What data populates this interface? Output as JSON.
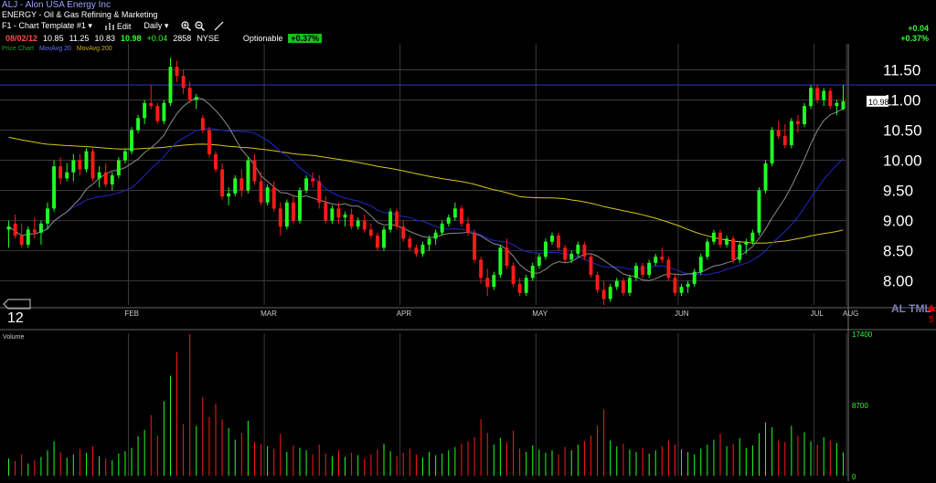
{
  "header": {
    "title": "ALJ - Alon USA Energy Inc",
    "sector": "ENERGY - Oil & Gas Refining & Marketing",
    "toolbar": {
      "template_label": "F1 - Chart Template #1 ▾",
      "edit_label": "Edit",
      "period_label": "Daily ▾"
    },
    "quote": {
      "date": "08/02/12",
      "open": "10.85",
      "high": "11.25",
      "low": "10.83",
      "close": "10.98",
      "change": "+0.04",
      "volume": "2858",
      "exchange": "NYSE",
      "optionable_label": "Optionable",
      "change_pct": "+0.37%"
    },
    "right_change": "+0.04",
    "right_change_pct": "+0.37%",
    "legend": {
      "price": "Price Chart",
      "ma_20": "MovAvg 20",
      "ma_200": "MovAvg 200"
    }
  },
  "corner_labels": {
    "left": "12",
    "right": "AL TML",
    "right_red": "5"
  },
  "colors": {
    "background": "#000000",
    "up": "#22ff22",
    "down": "#ff1a1a",
    "ma_short": "#8c8c8c",
    "ma_mid": "#1e28c8",
    "ma_long": "#d6c71a",
    "grid": "#3a3a3a",
    "hline": "#2a36c8"
  },
  "chart_data": [
    {
      "type": "candlestick",
      "title": "",
      "x": {
        "tick_labels": [
          "FEB",
          "MAR",
          "APR",
          "MAY",
          "JUN",
          "JUL",
          "AUG"
        ]
      },
      "y": {
        "ylim": [
          7.6,
          11.75
        ],
        "tick_labels": [
          "11.50",
          "11.00",
          "10.50",
          "10.00",
          "9.50",
          "9.00",
          "8.50",
          "8.00"
        ],
        "tick_values": [
          11.5,
          11.0,
          10.5,
          10.0,
          9.5,
          9.0,
          8.5,
          8.0
        ]
      },
      "last_price_label": "10.98",
      "last_price": 10.98,
      "reference_line": 11.25,
      "grid": true,
      "series": [
        {
          "type": "ohlc",
          "values": [
            [
              8.85,
              9.0,
              8.55,
              8.9
            ],
            [
              8.95,
              9.1,
              8.7,
              8.75
            ],
            [
              8.75,
              8.95,
              8.55,
              8.6
            ],
            [
              8.6,
              8.9,
              8.55,
              8.85
            ],
            [
              8.85,
              9.05,
              8.7,
              8.8
            ],
            [
              8.8,
              9.0,
              8.6,
              8.95
            ],
            [
              8.95,
              9.3,
              8.85,
              9.2
            ],
            [
              9.2,
              10.0,
              9.15,
              9.9
            ],
            [
              9.9,
              10.05,
              9.6,
              9.7
            ],
            [
              9.7,
              9.95,
              9.65,
              9.8
            ],
            [
              9.8,
              10.1,
              9.65,
              10.0
            ],
            [
              10.0,
              10.1,
              9.75,
              9.85
            ],
            [
              9.85,
              10.2,
              9.8,
              10.15
            ],
            [
              10.15,
              10.2,
              9.65,
              9.7
            ],
            [
              9.7,
              9.9,
              9.55,
              9.8
            ],
            [
              9.8,
              9.95,
              9.55,
              9.6
            ],
            [
              9.6,
              9.8,
              9.5,
              9.75
            ],
            [
              9.75,
              10.05,
              9.7,
              10.0
            ],
            [
              10.0,
              10.2,
              9.95,
              10.15
            ],
            [
              10.15,
              10.55,
              10.1,
              10.5
            ],
            [
              10.5,
              10.75,
              10.45,
              10.7
            ],
            [
              10.7,
              11.0,
              10.6,
              10.95
            ],
            [
              10.95,
              11.25,
              10.85,
              10.9
            ],
            [
              10.9,
              10.95,
              10.6,
              10.65
            ],
            [
              10.65,
              11.0,
              10.6,
              10.95
            ],
            [
              10.95,
              11.7,
              10.9,
              11.55
            ],
            [
              11.55,
              11.65,
              11.3,
              11.4
            ],
            [
              11.4,
              11.5,
              11.1,
              11.2
            ],
            [
              11.2,
              11.3,
              10.95,
              11.0
            ],
            [
              11.0,
              11.1,
              10.85,
              11.05
            ],
            [
              10.7,
              10.75,
              10.45,
              10.5
            ],
            [
              10.5,
              10.55,
              10.05,
              10.1
            ],
            [
              10.1,
              10.15,
              9.8,
              9.85
            ],
            [
              9.85,
              9.95,
              9.35,
              9.4
            ],
            [
              9.4,
              9.55,
              9.25,
              9.45
            ],
            [
              9.45,
              9.75,
              9.4,
              9.7
            ],
            [
              9.7,
              9.85,
              9.4,
              9.5
            ],
            [
              9.5,
              10.05,
              9.45,
              10.0
            ],
            [
              10.0,
              10.1,
              9.6,
              9.65
            ],
            [
              9.65,
              9.8,
              9.25,
              9.3
            ],
            [
              9.3,
              9.6,
              9.25,
              9.55
            ],
            [
              9.55,
              9.65,
              9.15,
              9.2
            ],
            [
              9.2,
              9.3,
              8.75,
              8.9
            ],
            [
              8.9,
              9.35,
              8.85,
              9.3
            ],
            [
              9.3,
              9.4,
              8.95,
              9.0
            ],
            [
              9.0,
              9.55,
              8.95,
              9.5
            ],
            [
              9.5,
              9.75,
              9.45,
              9.7
            ],
            [
              9.7,
              9.8,
              9.55,
              9.65
            ],
            [
              9.65,
              9.75,
              9.2,
              9.3
            ],
            [
              9.3,
              9.4,
              8.95,
              9.0
            ],
            [
              9.0,
              9.25,
              8.95,
              9.2
            ],
            [
              9.2,
              9.3,
              8.95,
              9.05
            ],
            [
              9.05,
              9.15,
              8.9,
              9.1
            ],
            [
              9.1,
              9.2,
              8.85,
              8.9
            ],
            [
              8.9,
              9.05,
              8.85,
              9.0
            ],
            [
              9.0,
              9.1,
              8.8,
              8.85
            ],
            [
              8.85,
              8.95,
              8.7,
              8.75
            ],
            [
              8.75,
              8.8,
              8.5,
              8.55
            ],
            [
              8.55,
              8.9,
              8.5,
              8.85
            ],
            [
              8.85,
              9.2,
              8.8,
              9.15
            ],
            [
              9.15,
              9.2,
              8.85,
              8.9
            ],
            [
              8.9,
              9.0,
              8.65,
              8.7
            ],
            [
              8.7,
              8.75,
              8.5,
              8.55
            ],
            [
              8.55,
              8.6,
              8.4,
              8.45
            ],
            [
              8.45,
              8.65,
              8.4,
              8.6
            ],
            [
              8.6,
              8.75,
              8.5,
              8.7
            ],
            [
              8.7,
              8.85,
              8.6,
              8.8
            ],
            [
              8.8,
              9.0,
              8.75,
              8.95
            ],
            [
              8.95,
              9.1,
              8.9,
              9.05
            ],
            [
              9.05,
              9.3,
              9.0,
              9.2
            ],
            [
              9.2,
              9.25,
              8.9,
              8.95
            ],
            [
              8.95,
              9.05,
              8.75,
              8.8
            ],
            [
              8.8,
              8.85,
              8.3,
              8.35
            ],
            [
              8.35,
              8.4,
              7.95,
              8.05
            ],
            [
              8.05,
              8.2,
              7.75,
              7.9
            ],
            [
              7.9,
              8.15,
              7.85,
              8.1
            ],
            [
              8.1,
              8.6,
              8.05,
              8.55
            ],
            [
              8.55,
              8.7,
              8.2,
              8.25
            ],
            [
              8.25,
              8.3,
              7.9,
              7.95
            ],
            [
              7.95,
              8.05,
              7.75,
              7.8
            ],
            [
              7.8,
              8.1,
              7.75,
              8.05
            ],
            [
              8.05,
              8.3,
              8.0,
              8.25
            ],
            [
              8.25,
              8.45,
              8.2,
              8.4
            ],
            [
              8.4,
              8.7,
              8.35,
              8.65
            ],
            [
              8.65,
              8.8,
              8.6,
              8.75
            ],
            [
              8.75,
              8.8,
              8.5,
              8.55
            ],
            [
              8.55,
              8.6,
              8.3,
              8.35
            ],
            [
              8.35,
              8.5,
              8.3,
              8.45
            ],
            [
              8.45,
              8.65,
              8.4,
              8.6
            ],
            [
              8.6,
              8.65,
              8.35,
              8.4
            ],
            [
              8.4,
              8.45,
              8.05,
              8.1
            ],
            [
              8.1,
              8.15,
              7.8,
              7.85
            ],
            [
              7.85,
              8.0,
              7.6,
              7.7
            ],
            [
              7.7,
              7.95,
              7.65,
              7.9
            ],
            [
              7.9,
              8.05,
              7.85,
              8.0
            ],
            [
              8.0,
              8.05,
              7.75,
              7.8
            ],
            [
              7.8,
              8.1,
              7.75,
              8.05
            ],
            [
              8.05,
              8.3,
              8.0,
              8.25
            ],
            [
              8.25,
              8.3,
              8.05,
              8.1
            ],
            [
              8.1,
              8.35,
              8.05,
              8.3
            ],
            [
              8.3,
              8.45,
              8.25,
              8.4
            ],
            [
              8.4,
              8.55,
              8.3,
              8.35
            ],
            [
              8.35,
              8.4,
              8.0,
              8.05
            ],
            [
              8.05,
              8.1,
              7.75,
              7.8
            ],
            [
              7.8,
              7.95,
              7.75,
              7.9
            ],
            [
              7.9,
              8.0,
              7.8,
              7.95
            ],
            [
              7.95,
              8.2,
              7.9,
              8.15
            ],
            [
              8.15,
              8.45,
              8.1,
              8.4
            ],
            [
              8.4,
              8.7,
              8.35,
              8.65
            ],
            [
              8.65,
              8.85,
              8.6,
              8.8
            ],
            [
              8.8,
              8.85,
              8.55,
              8.6
            ],
            [
              8.6,
              8.75,
              8.55,
              8.7
            ],
            [
              8.7,
              8.75,
              8.3,
              8.35
            ],
            [
              8.35,
              8.65,
              8.3,
              8.6
            ],
            [
              8.6,
              8.7,
              8.45,
              8.65
            ],
            [
              8.65,
              8.85,
              8.6,
              8.8
            ],
            [
              8.8,
              9.55,
              8.75,
              9.5
            ],
            [
              9.5,
              10.0,
              9.45,
              9.95
            ],
            [
              9.95,
              10.55,
              9.9,
              10.5
            ],
            [
              10.5,
              10.65,
              10.35,
              10.4
            ],
            [
              10.4,
              10.6,
              10.2,
              10.25
            ],
            [
              10.25,
              10.7,
              10.2,
              10.65
            ],
            [
              10.65,
              10.75,
              10.45,
              10.6
            ],
            [
              10.6,
              10.95,
              10.55,
              10.9
            ],
            [
              10.9,
              11.25,
              10.85,
              11.2
            ],
            [
              11.2,
              11.25,
              10.95,
              11.0
            ],
            [
              11.0,
              11.2,
              10.9,
              11.15
            ],
            [
              11.15,
              11.2,
              10.85,
              10.9
            ],
            [
              10.9,
              11.0,
              10.75,
              10.95
            ],
            [
              10.85,
              11.25,
              10.83,
              10.98
            ]
          ]
        },
        {
          "type": "line",
          "role": "moving-average-short"
        },
        {
          "type": "line",
          "role": "moving-average-mid"
        },
        {
          "type": "line",
          "role": "moving-average-long"
        }
      ]
    },
    {
      "type": "bar",
      "title": "Volume",
      "y": {
        "ylim": [
          0,
          17400
        ],
        "tick_labels": [
          "17400",
          "8700",
          "0"
        ],
        "tick_values": [
          17400,
          8700,
          0
        ]
      },
      "values": [
        2100,
        1800,
        2600,
        1500,
        1900,
        2300,
        3100,
        4200,
        2900,
        2200,
        2600,
        3300,
        2800,
        3600,
        2400,
        2100,
        1900,
        2700,
        3000,
        3400,
        4800,
        5600,
        7400,
        4900,
        9100,
        12200,
        15100,
        6300,
        17300,
        6100,
        9600,
        7200,
        8800,
        6900,
        5800,
        4400,
        5200,
        6700,
        4100,
        3900,
        3600,
        3300,
        5100,
        2900,
        3700,
        3400,
        3100,
        2600,
        3800,
        2700,
        2400,
        3100,
        2300,
        2800,
        2500,
        2100,
        2600,
        3200,
        3900,
        3000,
        2400,
        2800,
        3300,
        2600,
        2200,
        2900,
        2500,
        2700,
        3100,
        3500,
        3900,
        4200,
        4700,
        6900,
        5200,
        3800,
        4600,
        4100,
        5500,
        3300,
        2900,
        3700,
        3200,
        2800,
        3100,
        2600,
        3500,
        3100,
        3800,
        4200,
        4900,
        6100,
        8100,
        4300,
        3600,
        3900,
        3200,
        2900,
        3400,
        2700,
        3100,
        3600,
        4300,
        3800,
        3200,
        2900,
        2600,
        3300,
        3800,
        4400,
        5100,
        3600,
        3900,
        4600,
        3400,
        3700,
        5200,
        6500,
        5900,
        4300,
        4100,
        6100,
        4900,
        5300,
        4200,
        3800,
        4700,
        4300,
        4000,
        2858
      ],
      "color_by_direction": true
    }
  ]
}
